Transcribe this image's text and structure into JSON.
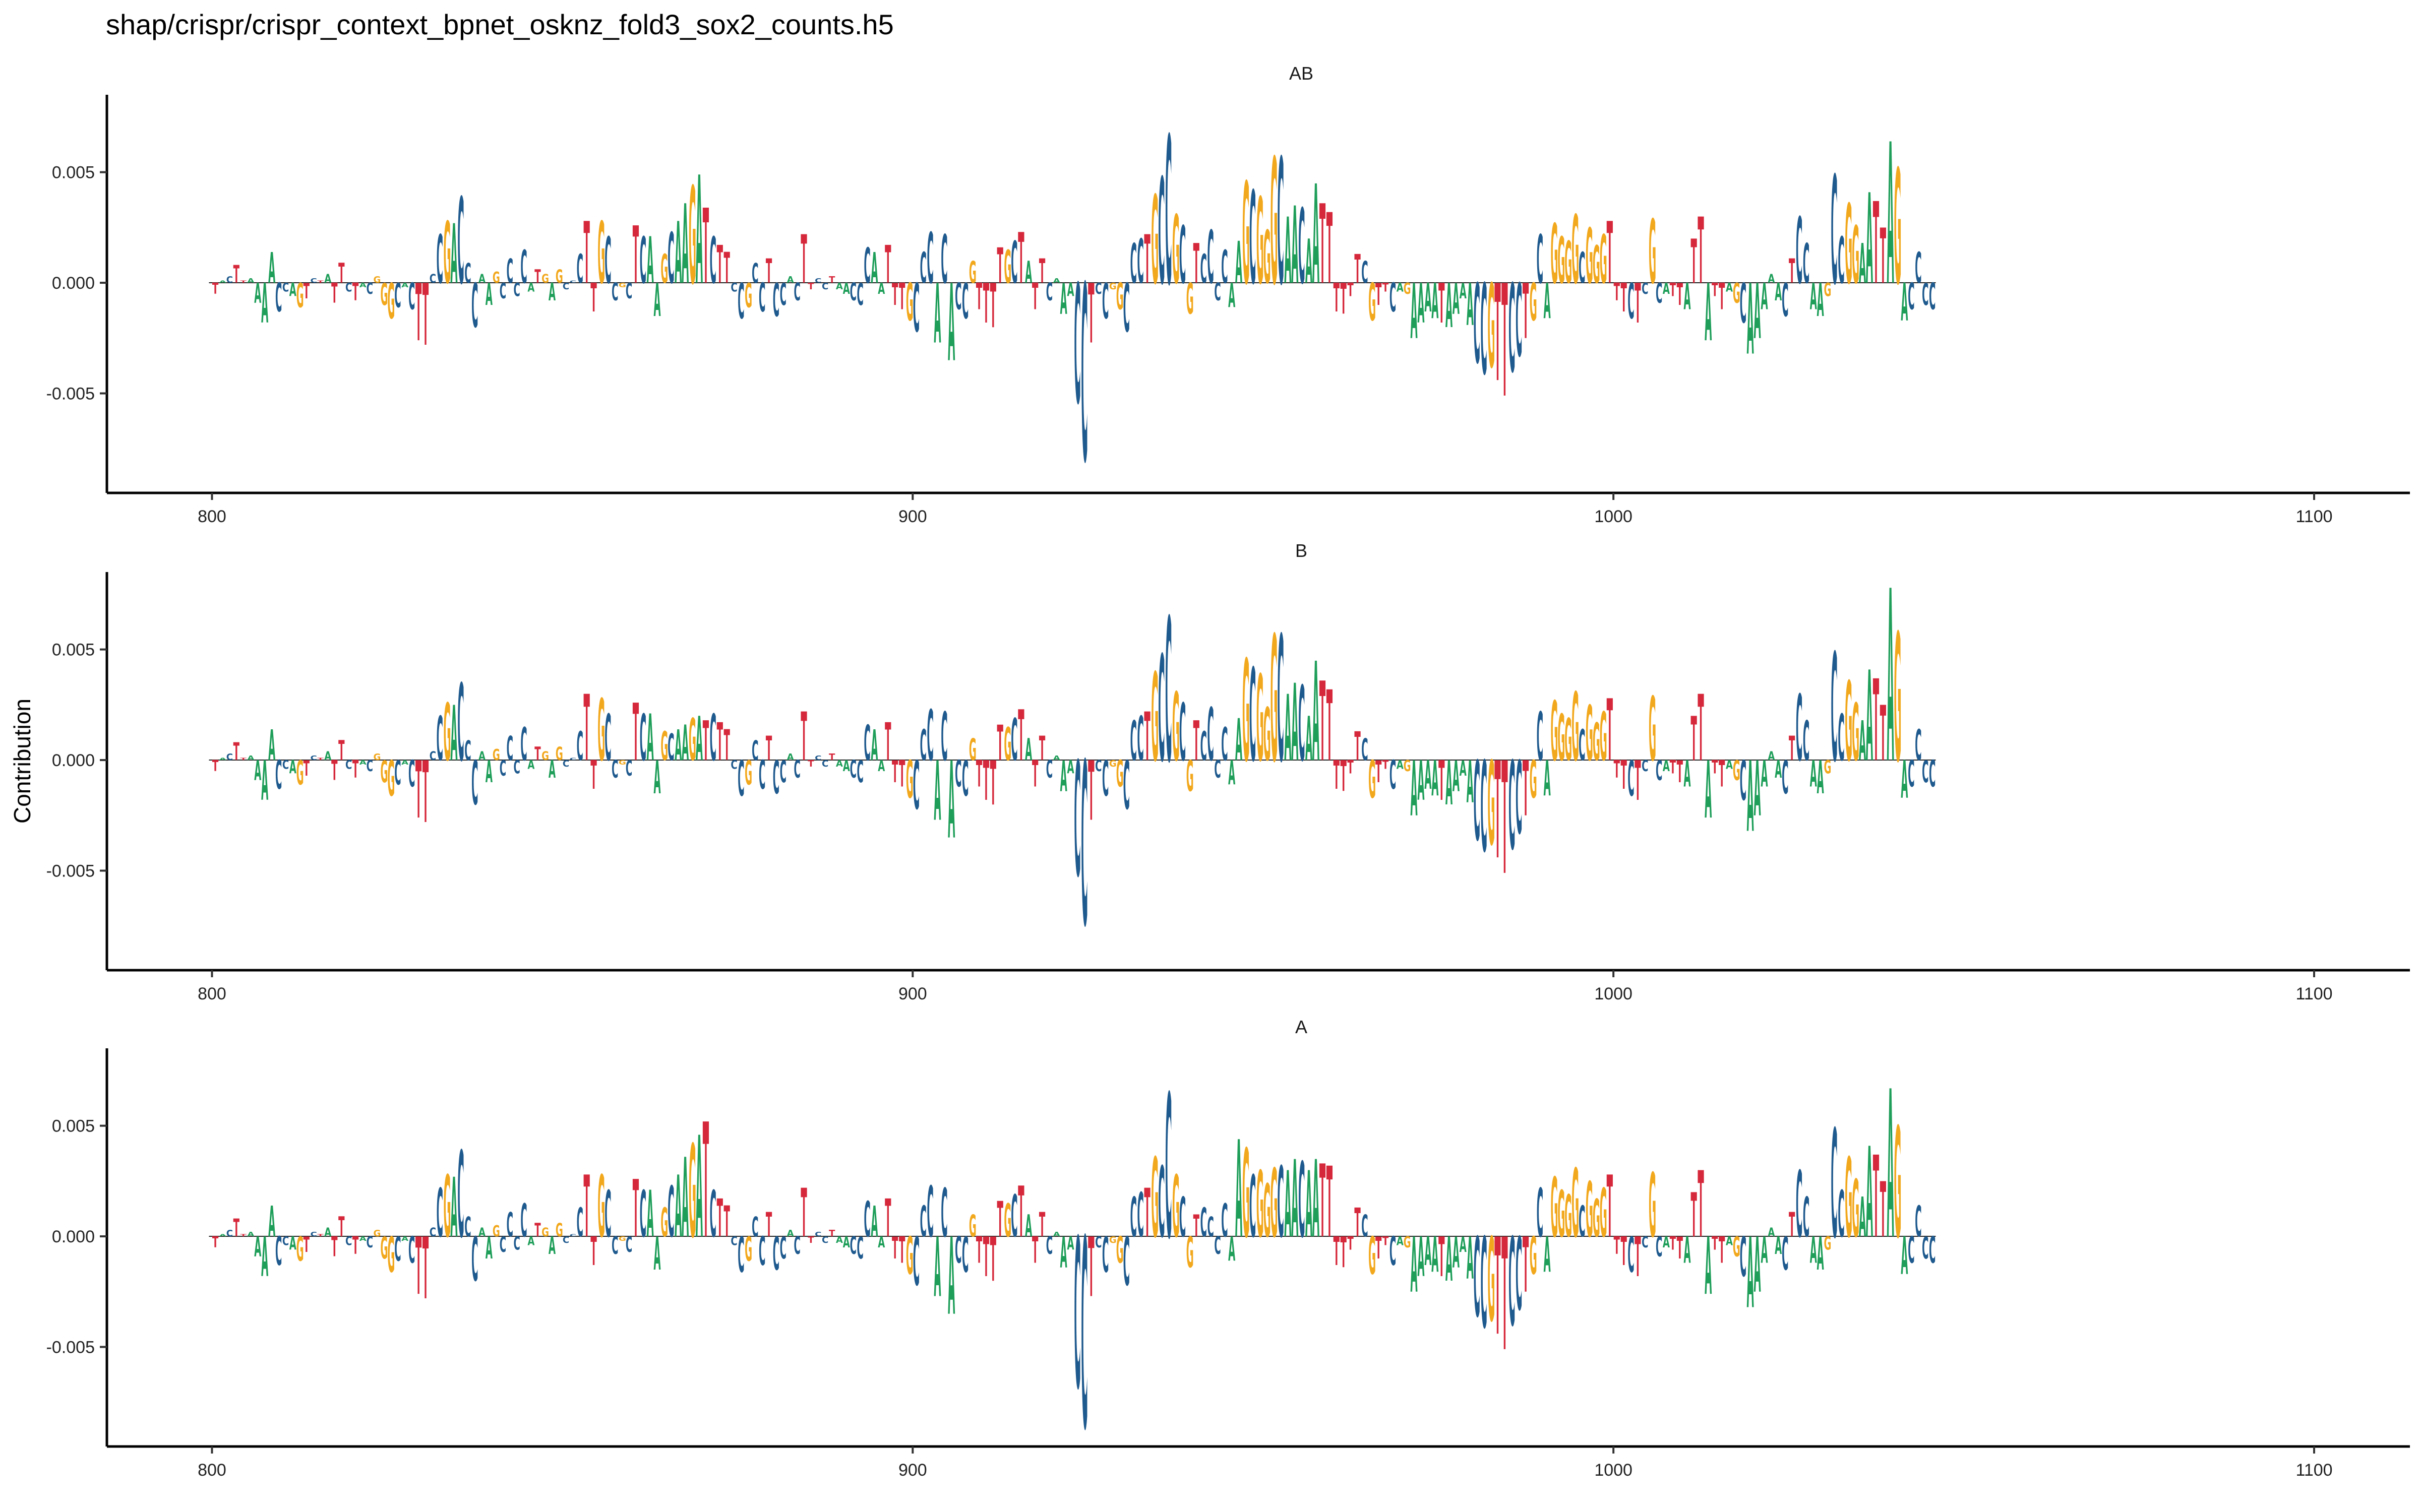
{
  "title": "shap/crispr/crispr_context_bpnet_osknz_fold3_sox2_counts.h5",
  "ylabel": "Contribution",
  "colors": {
    "A": "#1e9e59",
    "C": "#1f5a8e",
    "G": "#f2a81d",
    "T": "#d6283b"
  },
  "chart_data": [
    {
      "type": "sequence-logo",
      "title": "AB",
      "xlim": [
        785,
        1100
      ],
      "ylim": [
        -0.0095,
        0.0085
      ],
      "x_ticks": [
        {
          "v": 800,
          "label": "800"
        },
        {
          "v": 900,
          "label": "900"
        },
        {
          "v": 1000,
          "label": "1000"
        },
        {
          "v": 1100,
          "label": "1100"
        }
      ],
      "y_ticks": [
        {
          "v": 0.005,
          "label": "0.005"
        },
        {
          "v": 0.0,
          "label": "0.000"
        },
        {
          "v": -0.005,
          "label": "-0.005"
        }
      ],
      "x_start": 800,
      "sequence": "TACTTAAAACCAGTCTATTCTACGGGCACTTCCGACCCAAGCCCCATGAGCCCTTGCCGCTCAAGCAAGATCTTCCGCCTCCACTTCCTAACCCAATTTGCCCACACCGTTTTGCTATTCAAACCTCCGGCCCTGCCGCGTCCCCAAGCGGGCAACAATTTTTTCGTTCAGAAAATAAAACCGTTCCTGCAGGGGCGGGTTTCTCGCATTATTATTAGCAAAAACTCCAAGCCGGAATTAGACCCCCAGCTTG",
      "values": [
        -0.0005,
        0.0001,
        0.0003,
        0.0008,
        0.0001,
        0.0002,
        -0.0009,
        -0.0018,
        0.0014,
        -0.0013,
        -0.0004,
        -0.0006,
        -0.0011,
        -0.0007,
        0.0002,
        0.0001,
        0.0004,
        -0.0009,
        0.0009,
        -0.0004,
        -0.0008,
        -0.0002,
        -0.0005,
        0.0003,
        -0.001,
        -0.0016,
        -0.0011,
        -0.0002,
        -0.0012,
        -0.0026,
        -0.0028,
        0.0004,
        0.0022,
        0.0028,
        0.0027,
        0.0039,
        0.0009,
        -0.002,
        0.0004,
        -0.001,
        0.0005,
        -0.0007,
        0.0011,
        -0.0006,
        0.0015,
        -0.0004,
        0.0006,
        0.0004,
        -0.0008,
        0.0006,
        -0.0003,
        0.0001,
        0.0013,
        0.0028,
        -0.0013,
        0.0028,
        0.0021,
        -0.0008,
        -0.0002,
        -0.0007,
        0.0026,
        0.0021,
        0.0021,
        -0.0015,
        0.0013,
        0.0023,
        0.0028,
        0.0036,
        0.0044,
        0.0049,
        0.0034,
        0.0021,
        0.0017,
        0.0014,
        -0.0004,
        -0.0016,
        -0.0011,
        0.0009,
        -0.0013,
        0.0011,
        -0.0015,
        -0.001,
        0.0003,
        -0.0008,
        0.0022,
        -0.0003,
        0.0002,
        -0.0003,
        0.0003,
        -0.0003,
        -0.0005,
        -0.0008,
        -0.001,
        0.0016,
        0.0014,
        -0.0005,
        0.0017,
        -0.001,
        -0.0012,
        -0.0017,
        -0.0022,
        0.0014,
        0.0023,
        -0.0027,
        0.0022,
        -0.0035,
        -0.0012,
        -0.0016,
        0.001,
        -0.0012,
        -0.0018,
        -0.002,
        0.0016,
        0.0015,
        0.0019,
        0.0023,
        0.001,
        -0.0012,
        0.0011,
        -0.0008,
        0.0002,
        -0.0014,
        -0.0006,
        -0.0054,
        -0.008,
        -0.0027,
        -0.0005,
        -0.0016,
        -0.0003,
        -0.0012,
        -0.0022,
        0.0018,
        0.002,
        0.0022,
        0.004,
        0.0048,
        0.0067,
        0.0031,
        0.0026,
        -0.0014,
        0.0018,
        0.0013,
        0.0024,
        -0.0008,
        0.0015,
        -0.0011,
        0.0019,
        0.0046,
        0.0042,
        0.0039,
        0.0024,
        0.0057,
        0.0057,
        0.003,
        0.0035,
        0.0034,
        0.002,
        0.0045,
        0.0036,
        0.0032,
        -0.0013,
        -0.0014,
        -0.0006,
        0.0013,
        0.001,
        -0.0017,
        -0.001,
        -0.0004,
        -0.0013,
        -0.0004,
        -0.0005,
        -0.0025,
        -0.0018,
        -0.0013,
        -0.0016,
        -0.0018,
        -0.002,
        -0.0014,
        -0.0007,
        -0.0019,
        -0.0036,
        -0.0041,
        -0.0038,
        -0.0044,
        -0.0051,
        -0.004,
        -0.0033,
        -0.0025,
        -0.0017,
        0.0022,
        -0.0016,
        0.0027,
        0.0021,
        0.0019,
        0.0031,
        0.0014,
        0.0025,
        0.0017,
        0.0022,
        0.0028,
        -0.0008,
        -0.0013,
        -0.0016,
        -0.0018,
        -0.0005,
        0.0029,
        -0.0009,
        -0.0005,
        -0.0006,
        -0.001,
        -0.0012,
        0.002,
        0.003,
        -0.0026,
        -0.0006,
        -0.0012,
        -0.0004,
        -0.0009,
        -0.0018,
        -0.0032,
        -0.0025,
        -0.0012,
        0.0004,
        -0.0008,
        -0.0015,
        0.0011,
        0.003,
        0.0018,
        -0.0012,
        -0.0015,
        -0.0006,
        0.0049,
        0.0021,
        0.0036,
        0.0026,
        0.0018,
        0.0041,
        0.0037,
        0.0025,
        0.0064,
        0.0052,
        -0.0017,
        -0.0012,
        0.0014,
        -0.001,
        -0.0012
      ]
    },
    {
      "type": "sequence-logo",
      "title": "B",
      "xlim": [
        785,
        1100
      ],
      "ylim": [
        -0.0095,
        0.0085
      ],
      "x_ticks": [
        {
          "v": 800,
          "label": "800"
        },
        {
          "v": 900,
          "label": "900"
        },
        {
          "v": 1000,
          "label": "1000"
        },
        {
          "v": 1100,
          "label": "1100"
        }
      ],
      "y_ticks": [
        {
          "v": 0.005,
          "label": "0.005"
        },
        {
          "v": 0.0,
          "label": "0.000"
        },
        {
          "v": -0.005,
          "label": "-0.005"
        }
      ],
      "x_start": 800,
      "sequence": "TACTTAAAACCAGTCTATTCTACGGGCACTTCCGACCCAAGCCCCATGAGCCCTTGCCGCTCAAGCAAGATCTTCCGCCTCCACTTCCTAACCCAATTTGCCCACACCGTTTTGCTATTCAAACCTCCGGCCCTGCCGCGTCCCCAAGCGGGCAACAATTTTTTCGTTCAGAAAATAAAACCGTTCCTGCAGGGGCGGGTTTCTCGCATTATTATTAGCAAAAACTCCAAGCCGGAATTAGACCCCCAGCTTG",
      "values": [
        -0.0005,
        0.0001,
        0.0003,
        0.0008,
        0.0001,
        0.0002,
        -0.0009,
        -0.0018,
        0.0014,
        -0.0013,
        -0.0004,
        -0.0006,
        -0.0011,
        -0.0007,
        0.0002,
        0.0001,
        0.0004,
        -0.0009,
        0.0009,
        -0.0004,
        -0.0008,
        -0.0002,
        -0.0005,
        0.0003,
        -0.001,
        -0.0016,
        -0.0011,
        -0.0002,
        -0.0012,
        -0.0026,
        -0.0028,
        0.0004,
        0.002,
        0.0026,
        0.0025,
        0.0035,
        0.0009,
        -0.002,
        0.0004,
        -0.001,
        0.0005,
        -0.0007,
        0.0011,
        -0.0006,
        0.0015,
        -0.0004,
        0.0006,
        0.0004,
        -0.0008,
        0.0006,
        -0.0003,
        0.0001,
        0.0013,
        0.003,
        -0.0013,
        0.0028,
        0.0021,
        -0.0008,
        -0.0002,
        -0.0007,
        0.0026,
        0.0021,
        0.0021,
        -0.0015,
        0.0013,
        0.0012,
        0.0014,
        0.0016,
        0.0019,
        0.002,
        0.0018,
        0.0021,
        0.0017,
        0.0014,
        -0.0004,
        -0.0016,
        -0.0011,
        0.0009,
        -0.0013,
        0.0011,
        -0.0015,
        -0.001,
        0.0003,
        -0.0008,
        0.0022,
        -0.0003,
        0.0002,
        -0.0003,
        0.0003,
        -0.0003,
        -0.0005,
        -0.0008,
        -0.001,
        0.0016,
        0.0014,
        -0.0005,
        0.0017,
        -0.001,
        -0.0012,
        -0.0017,
        -0.0022,
        0.0014,
        0.0023,
        -0.0027,
        0.0022,
        -0.0035,
        -0.0012,
        -0.0016,
        0.001,
        -0.0012,
        -0.0018,
        -0.002,
        0.0016,
        0.0015,
        0.0019,
        0.0023,
        0.001,
        -0.0012,
        0.0011,
        -0.0008,
        0.0002,
        -0.0014,
        -0.0006,
        -0.0052,
        -0.0074,
        -0.0027,
        -0.0005,
        -0.0016,
        -0.0003,
        -0.0012,
        -0.0022,
        0.0018,
        0.002,
        0.0022,
        0.004,
        0.0048,
        0.0065,
        0.0031,
        0.0026,
        -0.0014,
        0.0018,
        0.0013,
        0.0024,
        -0.0008,
        0.0015,
        -0.0011,
        0.0019,
        0.0046,
        0.0042,
        0.0039,
        0.0024,
        0.0057,
        0.0057,
        0.003,
        0.0035,
        0.0034,
        0.002,
        0.0045,
        0.0036,
        0.0032,
        -0.0013,
        -0.0014,
        -0.0006,
        0.0013,
        0.001,
        -0.0017,
        -0.001,
        -0.0004,
        -0.0013,
        -0.0004,
        -0.0005,
        -0.0025,
        -0.0018,
        -0.0013,
        -0.0016,
        -0.0018,
        -0.002,
        -0.0014,
        -0.0007,
        -0.0019,
        -0.0036,
        -0.0041,
        -0.0038,
        -0.0044,
        -0.0051,
        -0.004,
        -0.0033,
        -0.0025,
        -0.0017,
        0.0022,
        -0.0016,
        0.0027,
        0.0021,
        0.0019,
        0.0031,
        0.0014,
        0.0025,
        0.0017,
        0.0022,
        0.0028,
        -0.0008,
        -0.0013,
        -0.0016,
        -0.0018,
        -0.0005,
        0.0029,
        -0.0009,
        -0.0005,
        -0.0006,
        -0.001,
        -0.0012,
        0.002,
        0.003,
        -0.0026,
        -0.0006,
        -0.0012,
        -0.0004,
        -0.0009,
        -0.0018,
        -0.0032,
        -0.0025,
        -0.0012,
        0.0004,
        -0.0008,
        -0.0015,
        0.0011,
        0.003,
        0.0018,
        -0.0012,
        -0.0015,
        -0.0006,
        0.0049,
        0.0021,
        0.0036,
        0.0026,
        0.0018,
        0.0041,
        0.0037,
        0.0025,
        0.0078,
        0.0058,
        -0.0017,
        -0.0012,
        0.0014,
        -0.001,
        -0.0012
      ]
    },
    {
      "type": "sequence-logo",
      "title": "A",
      "xlim": [
        785,
        1100
      ],
      "ylim": [
        -0.0095,
        0.0085
      ],
      "x_ticks": [
        {
          "v": 800,
          "label": "800"
        },
        {
          "v": 900,
          "label": "900"
        },
        {
          "v": 1000,
          "label": "1000"
        },
        {
          "v": 1100,
          "label": "1100"
        }
      ],
      "y_ticks": [
        {
          "v": 0.005,
          "label": "0.005"
        },
        {
          "v": 0.0,
          "label": "0.000"
        },
        {
          "v": -0.005,
          "label": "-0.005"
        }
      ],
      "x_start": 800,
      "sequence": "TACTTAAAACCAGTCTATTCTACGGGCACTTCCGACCCAAGCCCCATGAGCCCTTGCCGCTCAAGCAAGATCTTCCGCCTCCACTTCCTAACCCAATTTGCCCACACCGTTTTGCTATTCAAACCTCCGGCCCTGCCGCGTCCCCAAGCGGGCAACAATTTTTTCGTTCAGAAAATAAAACCGTTCCTGCAGGGGCGGGTTTCTCGCATTATTATTAGCAAAAACTCCAAGCCGGAATTAGACCCCCAGCTTG",
      "values": [
        -0.0005,
        0.0001,
        0.0003,
        0.0008,
        0.0001,
        0.0002,
        -0.0009,
        -0.0018,
        0.0014,
        -0.0013,
        -0.0004,
        -0.0006,
        -0.0011,
        -0.0007,
        0.0002,
        0.0001,
        0.0004,
        -0.0009,
        0.0009,
        -0.0004,
        -0.0008,
        -0.0002,
        -0.0005,
        0.0003,
        -0.001,
        -0.0016,
        -0.0011,
        -0.0002,
        -0.0012,
        -0.0026,
        -0.0028,
        0.0004,
        0.0022,
        0.0028,
        0.0027,
        0.0039,
        0.0009,
        -0.002,
        0.0004,
        -0.001,
        0.0005,
        -0.0007,
        0.0011,
        -0.0006,
        0.0015,
        -0.0004,
        0.0006,
        0.0004,
        -0.0008,
        0.0006,
        -0.0003,
        0.0001,
        0.0013,
        0.0028,
        -0.0013,
        0.0028,
        0.0021,
        -0.0008,
        -0.0002,
        -0.0007,
        0.0026,
        0.0021,
        0.0021,
        -0.0015,
        0.0013,
        0.0023,
        0.0028,
        0.0036,
        0.0042,
        0.0046,
        0.0052,
        0.0021,
        0.0017,
        0.0014,
        -0.0004,
        -0.0016,
        -0.0011,
        0.0009,
        -0.0013,
        0.0011,
        -0.0015,
        -0.001,
        0.0003,
        -0.0008,
        0.0022,
        -0.0003,
        0.0002,
        -0.0003,
        0.0003,
        -0.0003,
        -0.0005,
        -0.0008,
        -0.001,
        0.0016,
        0.0014,
        -0.0005,
        0.0017,
        -0.001,
        -0.0012,
        -0.0017,
        -0.0022,
        0.0014,
        0.0023,
        -0.0027,
        0.0022,
        -0.0035,
        -0.0012,
        -0.0016,
        0.001,
        -0.0012,
        -0.0018,
        -0.002,
        0.0016,
        0.0015,
        0.0019,
        0.0023,
        0.001,
        -0.0012,
        0.0011,
        -0.0008,
        0.0002,
        -0.0014,
        -0.0006,
        -0.0068,
        -0.0086,
        -0.0027,
        -0.0005,
        -0.0016,
        -0.0003,
        -0.0012,
        -0.0022,
        0.0018,
        0.002,
        0.0022,
        0.0036,
        0.0032,
        0.0065,
        0.0028,
        0.0018,
        -0.0014,
        0.001,
        0.0013,
        0.0009,
        -0.0008,
        0.0015,
        -0.0011,
        0.0044,
        0.004,
        0.0028,
        0.003,
        0.0024,
        0.0031,
        0.0032,
        0.003,
        0.0035,
        0.0034,
        0.003,
        0.0035,
        0.0033,
        0.0032,
        -0.0013,
        -0.0014,
        -0.0006,
        0.0013,
        0.001,
        -0.0017,
        -0.001,
        -0.0004,
        -0.0013,
        -0.0004,
        -0.0005,
        -0.0025,
        -0.0018,
        -0.0013,
        -0.0016,
        -0.0018,
        -0.002,
        -0.0014,
        -0.0007,
        -0.0019,
        -0.0036,
        -0.0041,
        -0.0038,
        -0.0044,
        -0.0051,
        -0.004,
        -0.0033,
        -0.0025,
        -0.0017,
        0.0022,
        -0.0016,
        0.0027,
        0.0021,
        0.0019,
        0.0031,
        0.0014,
        0.0025,
        0.0017,
        0.0022,
        0.0028,
        -0.0008,
        -0.0013,
        -0.0016,
        -0.0018,
        -0.0005,
        0.0029,
        -0.0009,
        -0.0005,
        -0.0006,
        -0.001,
        -0.0012,
        0.002,
        0.003,
        -0.0026,
        -0.0006,
        -0.0012,
        -0.0004,
        -0.0009,
        -0.0018,
        -0.0032,
        -0.0025,
        -0.0012,
        0.0004,
        -0.0008,
        -0.0015,
        0.0011,
        0.003,
        0.0018,
        -0.0012,
        -0.0015,
        -0.0006,
        0.0049,
        0.0021,
        0.0036,
        0.0026,
        0.0018,
        0.0041,
        0.0037,
        0.0025,
        0.0067,
        0.005,
        -0.0017,
        -0.0012,
        0.0014,
        -0.001,
        -0.0012
      ]
    }
  ]
}
